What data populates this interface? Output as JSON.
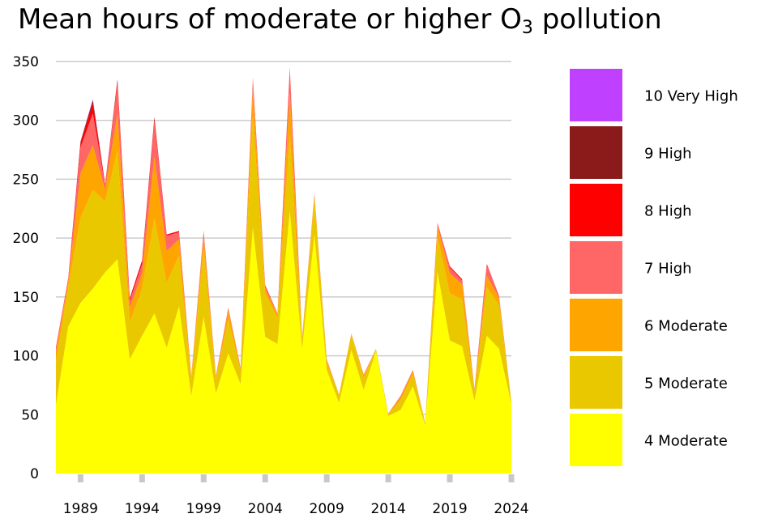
{
  "chart_data": {
    "type": "area",
    "stacked": true,
    "title_main": "Mean hours of moderate or higher O",
    "title_sub": "3",
    "title_tail": " pollution",
    "xlabel": "",
    "ylabel": "",
    "xlim": [
      1987,
      2024
    ],
    "ylim": [
      0,
      350
    ],
    "yticks": [
      0,
      50,
      100,
      150,
      200,
      250,
      300,
      350
    ],
    "xticks": [
      1989,
      1994,
      1999,
      2004,
      2009,
      2014,
      2019,
      2024
    ],
    "grid": "horizontal",
    "legend_position": "right",
    "x": [
      1987,
      1988,
      1989,
      1990,
      1991,
      1992,
      1993,
      1994,
      1995,
      1996,
      1997,
      1998,
      1999,
      2000,
      2001,
      2002,
      2003,
      2004,
      2005,
      2006,
      2007,
      2008,
      2009,
      2010,
      2011,
      2012,
      2013,
      2014,
      2015,
      2016,
      2017,
      2018,
      2019,
      2020,
      2021,
      2022,
      2023,
      2024
    ],
    "series": [
      {
        "name": "4 Moderate",
        "color": "#ffff00",
        "values": [
          58,
          125,
          145,
          157,
          171,
          182,
          97,
          117,
          136,
          107,
          142,
          66,
          133,
          68,
          102,
          76,
          209,
          116,
          110,
          223,
          106,
          203,
          88,
          60,
          105,
          71,
          104,
          49,
          54,
          74,
          41,
          171,
          113,
          108,
          62,
          117,
          106,
          59
        ]
      },
      {
        "name": "5 Moderate",
        "color": "#eac800",
        "values": [
          37,
          33,
          72,
          84,
          60,
          92,
          31,
          40,
          81,
          55,
          43,
          13,
          57,
          12,
          29,
          11,
          95,
          37,
          22,
          65,
          7,
          30,
          6,
          6,
          13,
          10,
          2,
          1,
          8,
          10,
          2,
          30,
          40,
          40,
          7,
          41,
          37,
          2
        ]
      },
      {
        "name": "6 Moderate",
        "color": "#ffa500",
        "values": [
          8,
          5,
          38,
          38,
          10,
          32,
          13,
          13,
          52,
          27,
          14,
          3,
          11,
          2,
          8,
          2,
          23,
          4,
          3,
          36,
          2,
          4,
          2,
          1,
          1,
          2,
          0,
          1,
          3,
          3,
          0,
          9,
          17,
          13,
          2,
          10,
          6,
          0
        ]
      },
      {
        "name": "7 High",
        "color": "#ff6666",
        "values": [
          3,
          2,
          22,
          27,
          4,
          25,
          6,
          8,
          30,
          13,
          6,
          1,
          4,
          1,
          2,
          1,
          8,
          2,
          1,
          20,
          1,
          1,
          1,
          0,
          0,
          1,
          0,
          0,
          1,
          1,
          0,
          3,
          5,
          3,
          1,
          9,
          2,
          0
        ]
      },
      {
        "name": "8 High",
        "color": "#ff0000",
        "values": [
          1,
          1,
          4,
          8,
          1,
          3,
          2,
          3,
          3,
          1,
          1,
          0,
          1,
          0,
          0,
          0,
          1,
          1,
          0,
          1,
          0,
          0,
          0,
          0,
          0,
          0,
          0,
          0,
          0,
          0,
          0,
          0,
          1,
          1,
          0,
          1,
          0,
          0
        ]
      },
      {
        "name": "9 High",
        "color": "#8b1a1a",
        "values": [
          0,
          0,
          1,
          3,
          0,
          1,
          0,
          0,
          1,
          0,
          0,
          0,
          0,
          0,
          0,
          0,
          0,
          0,
          0,
          0,
          0,
          0,
          0,
          0,
          0,
          0,
          0,
          0,
          0,
          0,
          0,
          0,
          0,
          0,
          0,
          0,
          0,
          0
        ]
      },
      {
        "name": "10 Very High",
        "color": "#c040ff",
        "values": [
          0,
          0,
          0,
          1,
          0,
          0,
          0,
          0,
          0,
          0,
          0,
          0,
          0,
          0,
          0,
          0,
          0,
          0,
          0,
          0,
          0,
          0,
          0,
          0,
          0,
          0,
          0,
          0,
          0,
          0,
          0,
          0,
          0,
          0,
          0,
          0,
          0,
          0
        ]
      }
    ]
  }
}
